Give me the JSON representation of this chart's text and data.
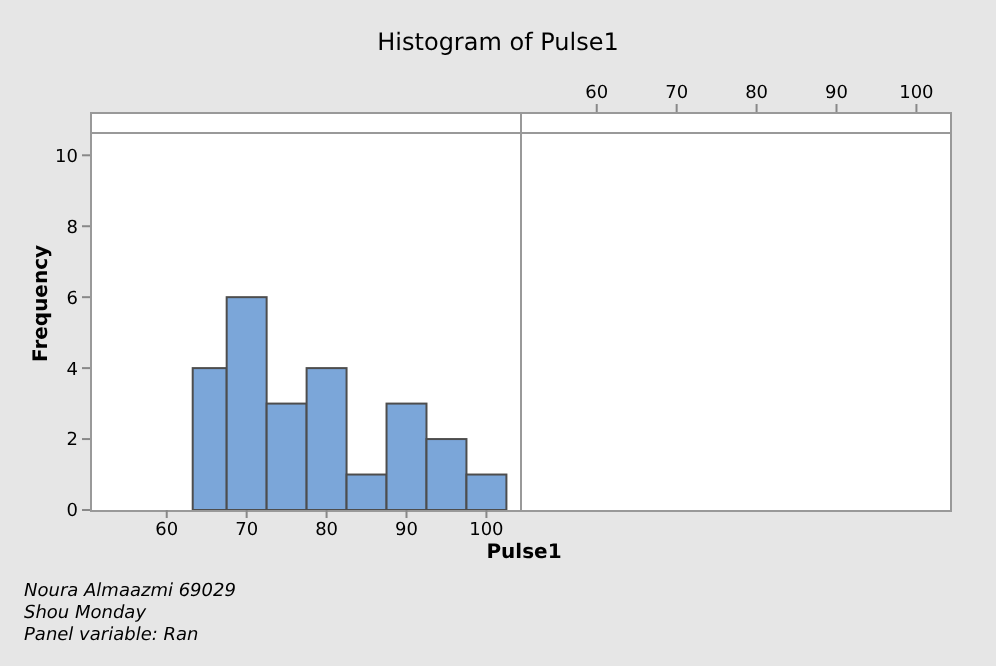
{
  "chart_data": {
    "type": "histogram",
    "title": "Histogram of Pulse1",
    "xlabel": "Pulse1",
    "ylabel": "Frequency",
    "bins": [
      63.25,
      67.5,
      72.5,
      77.5,
      82.5,
      87.5,
      92.5,
      97.5,
      102.5
    ],
    "values": [
      4,
      6,
      3,
      4,
      1,
      3,
      2,
      1
    ],
    "color": "#7ba6d9",
    "xlim": [
      50.4,
      104.2
    ],
    "xticks": [
      60,
      70,
      80,
      90,
      100
    ],
    "ylim": [
      0,
      10.6
    ],
    "yticks": [
      0,
      2,
      4,
      6,
      8,
      10
    ],
    "grid": false,
    "x2lim": [
      50.4,
      104.2
    ],
    "x2ticks": [
      60,
      70,
      80,
      90,
      100
    ],
    "annotations": [
      "Noura Almaazmi 69029",
      "Shou Monday",
      "Panel variable: Ran"
    ]
  }
}
